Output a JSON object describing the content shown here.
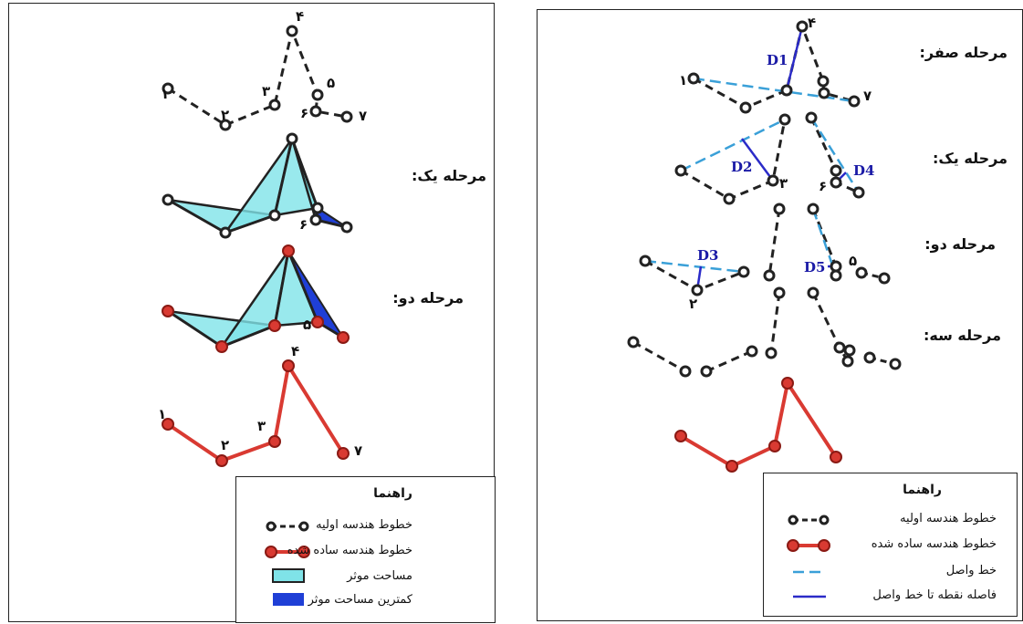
{
  "left": {
    "stage1_label": "مرحله یک:",
    "stage2_label": "مرحله دو:",
    "numbers": {
      "p1": "۱",
      "p2": "۲",
      "p3": "۳",
      "p4": "۴",
      "p5": "۵",
      "p6": "۶",
      "p7": "۷",
      "s1_p6": "۶",
      "s2_p5": "۵",
      "r1": "۱",
      "r2": "۲",
      "r3": "۳",
      "r4": "۴",
      "r7": "۷"
    },
    "legend": {
      "title": "راهنما",
      "items": [
        "خطوط هندسه اولیه",
        "خطوط هندسه ساده شده",
        "مساحت موثر",
        "کمترین مساحت موثر"
      ]
    }
  },
  "right": {
    "stage0_label": "مرحله صفر:",
    "stage1_label": "مرحله یک:",
    "stage2_label": "مرحله دو:",
    "stage3_label": "مرحله سه:",
    "distances": {
      "d1": "D1",
      "d2": "D2",
      "d3": "D3",
      "d4": "D4",
      "d5": "D5"
    },
    "numbers": {
      "p4": "۴",
      "p1": "۱",
      "p7": "۷",
      "p3": "۳",
      "p6": "۶",
      "p5": "۵",
      "p2": "۲"
    },
    "legend": {
      "title": "راهنما",
      "items": [
        "خطوط هندسه اولیه",
        "خطوط هندسه ساده شده",
        "خط واصل",
        "فاصله نقطه تا خط واصل"
      ]
    }
  },
  "colors": {
    "initial_line": "#222222",
    "simplified_line": "#d93a32",
    "effective_area": "#7fe3e8",
    "min_area": "#1f3fd6",
    "connector": "#3aa0d8",
    "distance": "#2b2bc8"
  }
}
